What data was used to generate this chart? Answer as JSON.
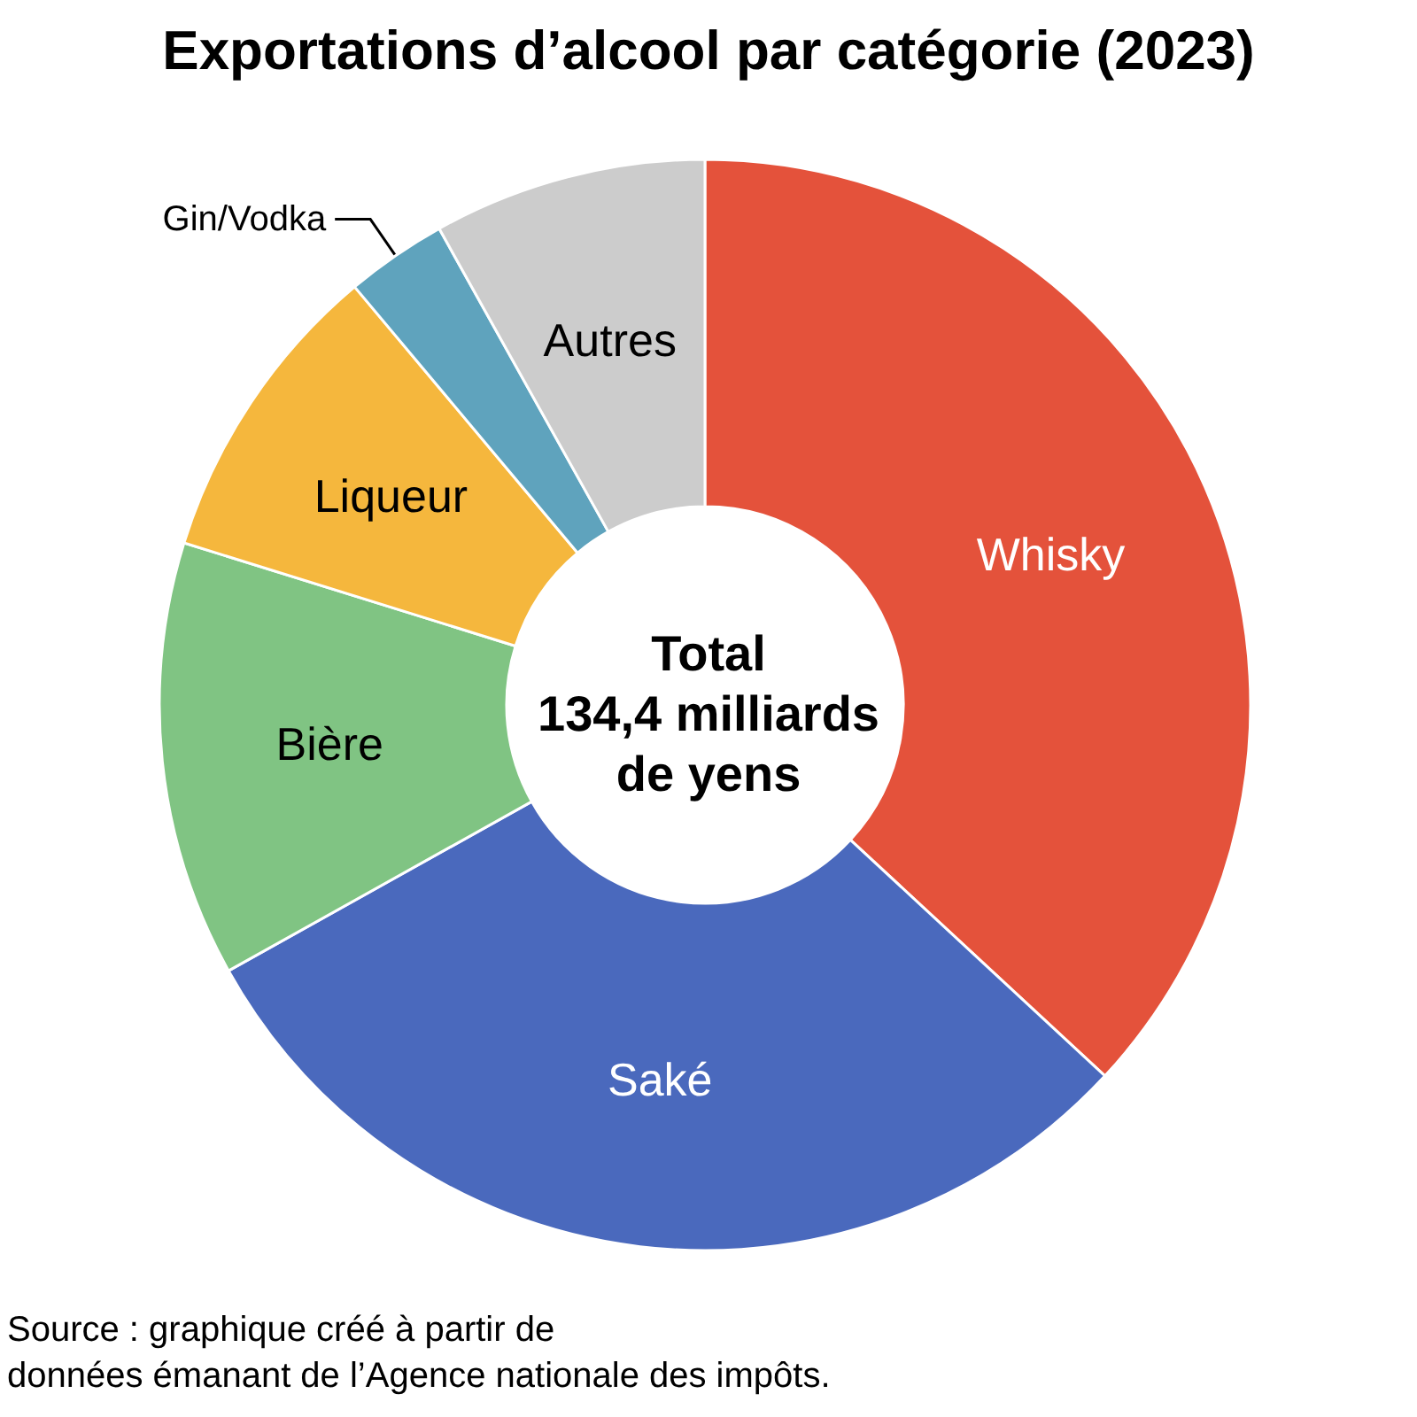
{
  "chart_data": {
    "type": "donut",
    "title": "Exportations d’alcool par catégorie (2023)",
    "categories": [
      "Whisky",
      "Saké",
      "Bière",
      "Liqueur",
      "Gin/Vodka",
      "Autres"
    ],
    "values": [
      36.9,
      30.0,
      12.9,
      9.1,
      3.0,
      8.1
    ],
    "colors": [
      "#e4523b",
      "#4a69bd",
      "#80c483",
      "#f5b73d",
      "#5fa3bd",
      "#cccccc"
    ],
    "legend": false,
    "annotations": [
      "Total\n134,4 milliards\nde yens",
      "Source : graphique créé à partir de\ndonnées émanant de l’Agence nationale des impôts."
    ]
  }
}
